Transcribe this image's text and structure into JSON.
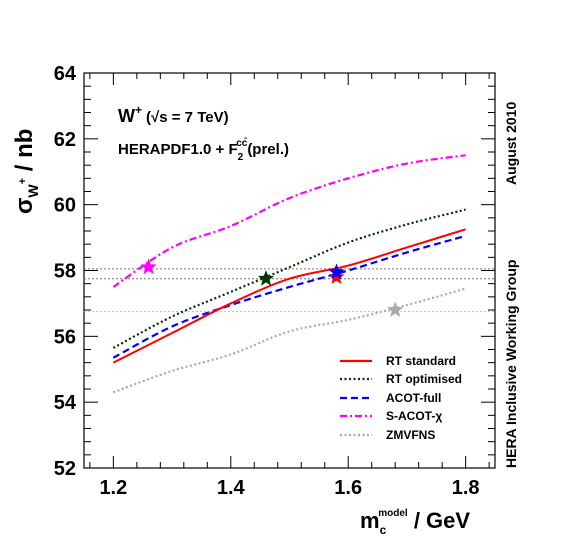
{
  "chart_data": {
    "type": "line",
    "ylabel": "σ_{W+} / nb",
    "ylabel_main": "σ",
    "ylabel_sub": "W",
    "ylabel_sup": "+",
    "ylabel_tail": " / nb",
    "xlabel": "m_c^model / GeV",
    "xlabel_main": "m",
    "xlabel_sub": "c",
    "xlabel_sup": "model",
    "xlabel_tail": " / GeV",
    "xlim": [
      1.15,
      1.85
    ],
    "ylim": [
      52,
      64
    ],
    "xticks": [
      1.2,
      1.4,
      1.6,
      1.8
    ],
    "xtick_labels": [
      "1.2",
      "1.4",
      "1.6",
      "1.8"
    ],
    "yticks": [
      52,
      54,
      56,
      58,
      60,
      62,
      64
    ],
    "ytick_labels": [
      "52",
      "54",
      "56",
      "58",
      "60",
      "62",
      "64"
    ],
    "annotations": {
      "process_main": "W",
      "process_sup": "+",
      "energy": "(√s = 7 TeV)",
      "pdf_main": "HERAPDF1.0 + F",
      "pdf_sub": "2",
      "pdf_sup": "cc̄",
      "pdf_tail": "(prel.)"
    },
    "side_labels": [
      "August 2010",
      "HERA Inclusive Working Group"
    ],
    "hlines": [
      58.05,
      57.75,
      56.75
    ],
    "x": [
      1.2,
      1.3,
      1.4,
      1.5,
      1.6,
      1.7,
      1.8
    ],
    "series": [
      {
        "name": "RT standard",
        "color": "#ff0000",
        "dash": "solid",
        "values": [
          55.2,
          56.1,
          57.0,
          57.75,
          58.15,
          58.7,
          59.25
        ],
        "star": {
          "x": 1.58,
          "y": 57.8
        }
      },
      {
        "name": "RT optimised",
        "color": "#003300",
        "dash": "dotted",
        "values": [
          55.65,
          56.6,
          57.35,
          58.1,
          58.85,
          59.4,
          59.85
        ],
        "star": {
          "x": 1.46,
          "y": 57.75
        }
      },
      {
        "name": "ACOT-full",
        "color": "#0000ff",
        "dash": "dashed",
        "values": [
          55.35,
          56.3,
          56.95,
          57.5,
          58.0,
          58.55,
          59.05
        ],
        "star": {
          "x": 1.58,
          "y": 57.95
        }
      },
      {
        "name": "S-ACOT-χ",
        "color": "#ff00ff",
        "dash": "dashdot",
        "values": [
          57.5,
          58.7,
          59.35,
          60.2,
          60.8,
          61.25,
          61.5
        ],
        "star": {
          "x": 1.26,
          "y": 58.1
        }
      },
      {
        "name": "ZMVFNS",
        "color": "#aaaaaa",
        "dash": "dotted",
        "values": [
          54.3,
          54.95,
          55.45,
          56.15,
          56.5,
          56.95,
          57.45
        ],
        "star": {
          "x": 1.68,
          "y": 56.8
        }
      }
    ]
  }
}
